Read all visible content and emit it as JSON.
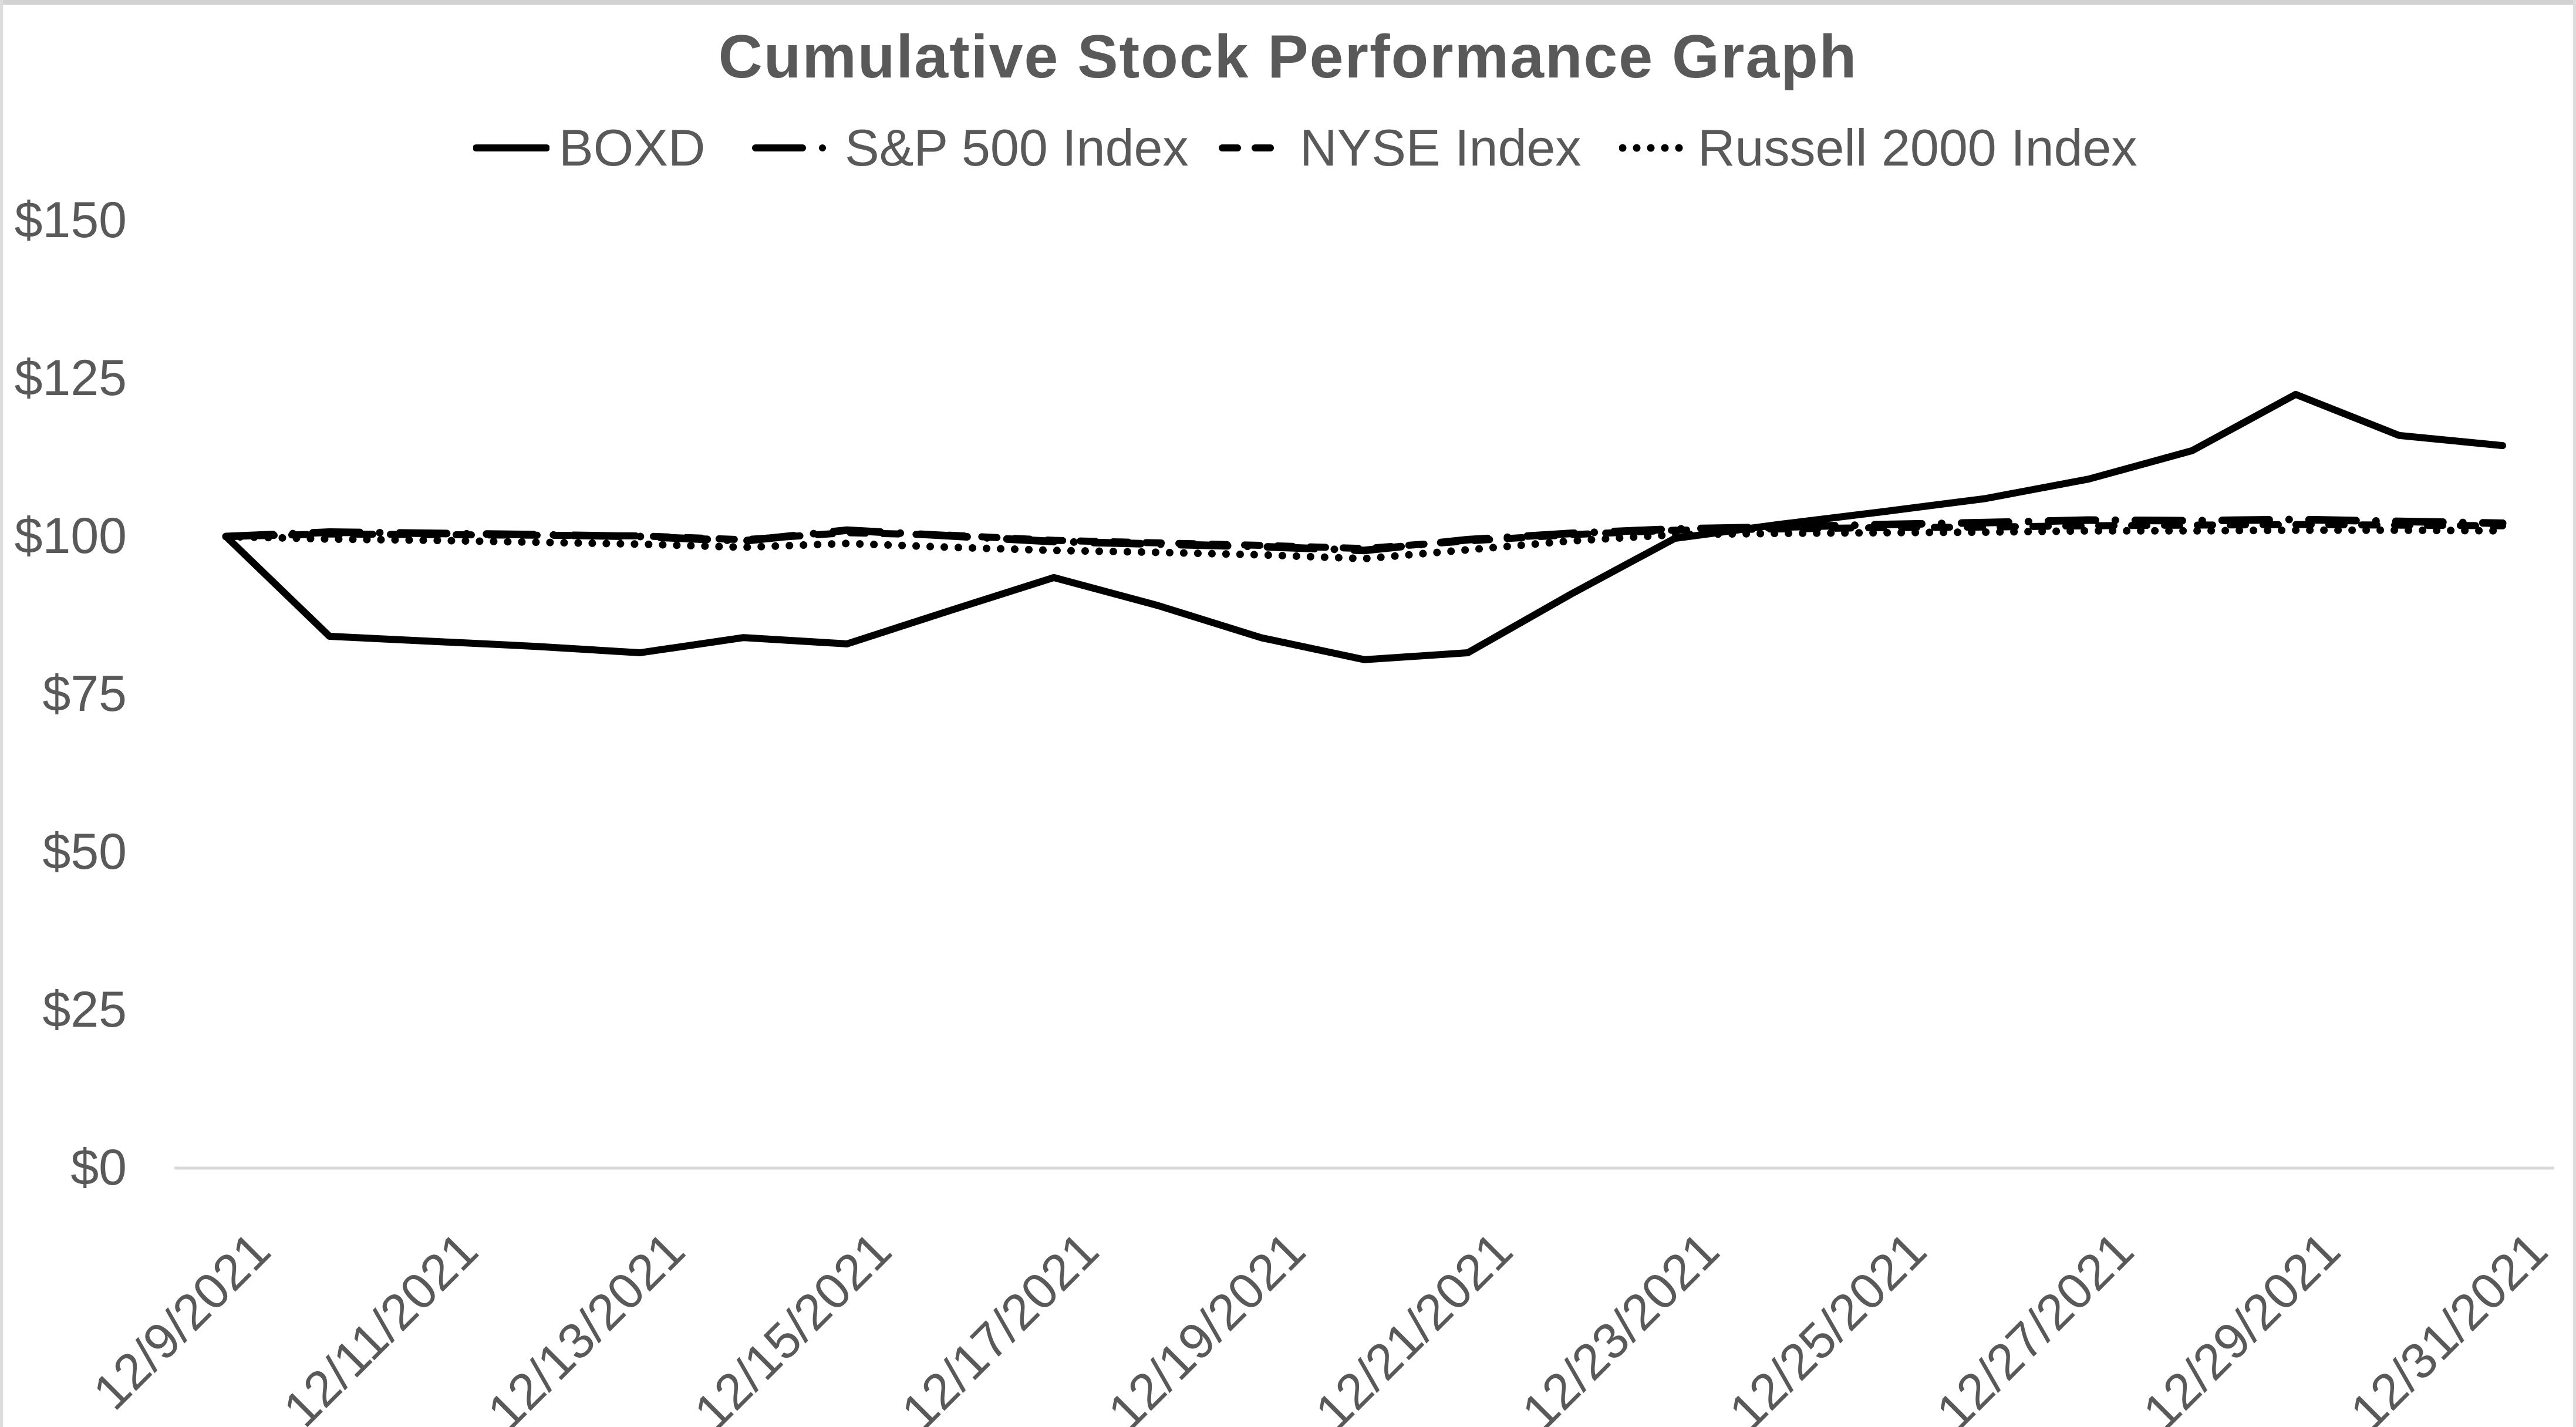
{
  "title": "Cumulative Stock Performance Graph",
  "legend": {
    "items": [
      {
        "label": "BOXD",
        "style": "solid"
      },
      {
        "label": "S&P 500 Index",
        "style": "dash-dot"
      },
      {
        "label": "NYSE Index",
        "style": "dash"
      },
      {
        "label": "Russell 2000 Index",
        "style": "dot"
      }
    ]
  },
  "y_axis": {
    "ticks": [
      {
        "label": "$150",
        "value": 150
      },
      {
        "label": "$125",
        "value": 125
      },
      {
        "label": "$100",
        "value": 100
      },
      {
        "label": "$75",
        "value": 75
      },
      {
        "label": "$50",
        "value": 50
      },
      {
        "label": "$25",
        "value": 25
      },
      {
        "label": "$0",
        "value": 0
      }
    ]
  },
  "x_axis": {
    "tick_labels": [
      "12/9/2021",
      "12/11/2021",
      "12/13/2021",
      "12/15/2021",
      "12/17/2021",
      "12/19/2021",
      "12/21/2021",
      "12/23/2021",
      "12/25/2021",
      "12/27/2021",
      "12/29/2021",
      "12/31/2021"
    ]
  },
  "chart_data": {
    "type": "line",
    "title": "Cumulative Stock Performance Graph",
    "xlabel": "",
    "ylabel": "",
    "ylim": [
      0,
      150
    ],
    "ytick_step": 25,
    "currency_prefix": "$",
    "grid": false,
    "legend_position": "top",
    "line_color": "#000000",
    "text_color": "#595959",
    "axis_line_color": "#d9d9d9",
    "x": [
      "12/9/2021",
      "12/10/2021",
      "12/11/2021",
      "12/12/2021",
      "12/13/2021",
      "12/14/2021",
      "12/15/2021",
      "12/16/2021",
      "12/17/2021",
      "12/18/2021",
      "12/19/2021",
      "12/20/2021",
      "12/21/2021",
      "12/22/2021",
      "12/23/2021",
      "12/24/2021",
      "12/25/2021",
      "12/26/2021",
      "12/27/2021",
      "12/28/2021",
      "12/29/2021",
      "12/30/2021",
      "12/31/2021"
    ],
    "series": [
      {
        "name": "BOXD",
        "line_style": "solid",
        "dash": "",
        "stroke_width": 12,
        "values": [
          100,
          84.2,
          83.4,
          82.6,
          81.6,
          84.0,
          83.0,
          88.3,
          93.5,
          89.1,
          84.0,
          80.5,
          81.6,
          90.9,
          99.7,
          101.9,
          103.9,
          106.0,
          109.1,
          113.6,
          122.5,
          116.0,
          114.4
        ]
      },
      {
        "name": "S&P 500 Index",
        "line_style": "dash-dot",
        "dash": "80 34 0 34",
        "stroke_width": 13,
        "values": [
          100,
          100.7,
          100.5,
          100.3,
          100.0,
          99.3,
          101.0,
          100.1,
          99.2,
          98.8,
          98.4,
          97.8,
          99.5,
          100.5,
          101.2,
          101.5,
          101.9,
          102.2,
          102.6,
          102.5,
          102.7,
          102.4,
          102.1
        ]
      },
      {
        "name": "NYSE Index",
        "line_style": "dash",
        "dash": "26 30",
        "stroke_width": 12,
        "values": [
          100,
          100.4,
          100.3,
          100.2,
          100.1,
          99.5,
          100.6,
          100.2,
          99.4,
          99.0,
          98.6,
          98.1,
          99.3,
          100.3,
          101.0,
          101.2,
          101.4,
          101.5,
          101.7,
          101.8,
          101.9,
          101.8,
          101.7
        ]
      },
      {
        "name": "Russell 2000 Index",
        "line_style": "dot",
        "dash": "0 24",
        "stroke_width": 13,
        "values": [
          100,
          99.6,
          99.4,
          99.1,
          98.8,
          98.3,
          98.9,
          98.3,
          97.8,
          97.5,
          97.1,
          96.5,
          97.9,
          99.3,
          100.3,
          100.5,
          100.6,
          100.7,
          100.9,
          100.9,
          101.0,
          101.0,
          100.9
        ]
      }
    ]
  }
}
